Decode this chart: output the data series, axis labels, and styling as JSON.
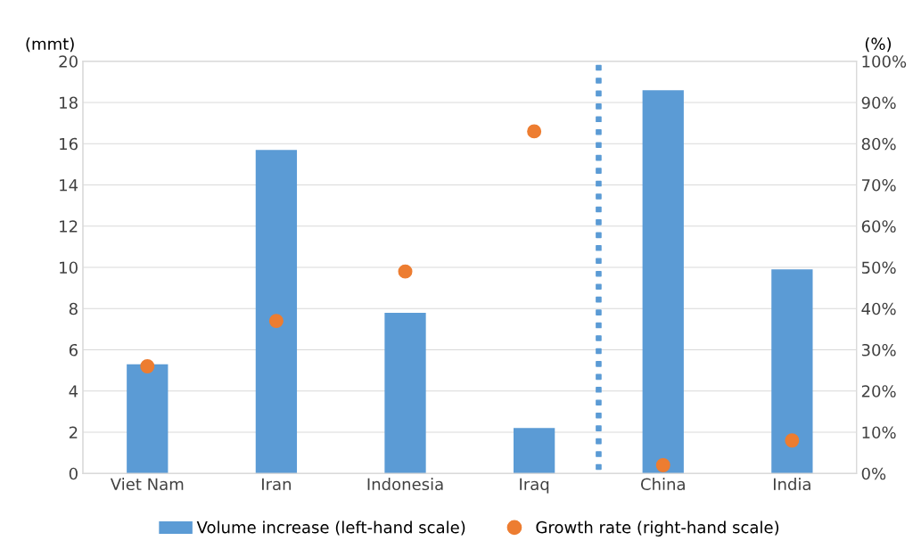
{
  "chart_data": {
    "type": "bar",
    "ylabel": "(mmt)",
    "y2label": "(%)",
    "categories": [
      "Viet Nam",
      "Iran",
      "Indonesia",
      "Iraq",
      "China",
      "India"
    ],
    "series": [
      {
        "name": "Volume increase (left-hand scale)",
        "color": "#5b9bd5",
        "values": [
          5.3,
          15.7,
          7.8,
          2.2,
          18.6,
          9.9
        ]
      },
      {
        "name": "Growth rate (right-hand scale)",
        "type": "scatter",
        "axis": "y2",
        "color": "#ed7d31",
        "marker": "circle",
        "values": [
          26,
          37,
          49,
          83,
          2,
          8
        ]
      }
    ],
    "ylim": [
      0,
      20
    ],
    "yticks": [
      0,
      2,
      4,
      6,
      8,
      10,
      12,
      14,
      16,
      18,
      20
    ],
    "y2lim": [
      0,
      100
    ],
    "y2ticks": [
      {
        "value": 0,
        "label": "0%"
      },
      {
        "value": 10,
        "label": "10%"
      },
      {
        "value": 20,
        "label": "20%"
      },
      {
        "value": 30,
        "label": "30%"
      },
      {
        "value": 40,
        "label": "40%"
      },
      {
        "value": 50,
        "label": "50%"
      },
      {
        "value": 60,
        "label": "60%"
      },
      {
        "value": 70,
        "label": "70%"
      },
      {
        "value": 80,
        "label": "80%"
      },
      {
        "value": 90,
        "label": "90%"
      },
      {
        "value": 100,
        "label": "100%"
      }
    ],
    "grid": "y",
    "legend": "bottom"
  }
}
